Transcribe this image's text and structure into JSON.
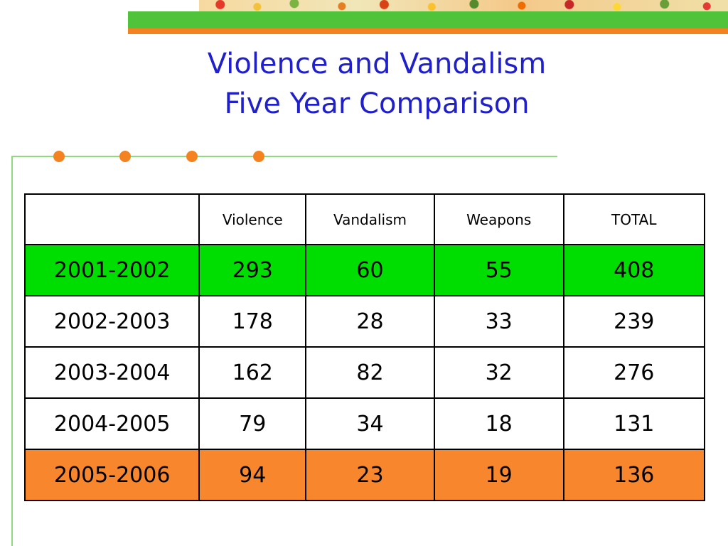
{
  "title": {
    "line1": "Violence and Vandalism",
    "line2": "Five Year Comparison"
  },
  "colors": {
    "title": "#1f1fcc",
    "accent_green": "#4fc33a",
    "accent_orange": "#f58220",
    "row_highlight_green": "#00dd00",
    "row_highlight_orange": "#f7862d"
  },
  "table": {
    "headers": [
      "",
      "Violence",
      "Vandalism",
      "Weapons",
      "TOTAL"
    ],
    "rows": [
      {
        "year": "2001-2002",
        "violence": "293",
        "vandalism": "60",
        "weapons": "55",
        "total": "408"
      },
      {
        "year": "2002-2003",
        "violence": "178",
        "vandalism": "28",
        "weapons": "33",
        "total": "239"
      },
      {
        "year": "2003-2004",
        "violence": "162",
        "vandalism": "82",
        "weapons": "32",
        "total": "276"
      },
      {
        "year": "2004-2005",
        "violence": "79",
        "vandalism": "34",
        "weapons": "18",
        "total": "131"
      },
      {
        "year": "2005-2006",
        "violence": "94",
        "vandalism": "23",
        "weapons": "19",
        "total": "136"
      }
    ]
  }
}
